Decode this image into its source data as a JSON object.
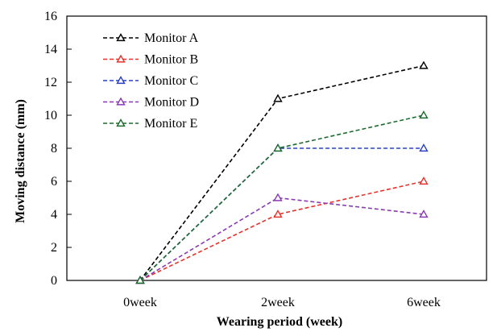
{
  "chart_data": {
    "type": "line",
    "title": "",
    "xlabel": "Wearing period (week)",
    "ylabel": "Moving distance (mm)",
    "categories": [
      "0week",
      "2week",
      "6week"
    ],
    "ylim": [
      0,
      16
    ],
    "yticks": [
      0,
      2,
      4,
      6,
      8,
      10,
      12,
      14,
      16
    ],
    "grid": false,
    "legend_position": "top-left",
    "marker": "open-triangle",
    "line_style": "dashed",
    "series": [
      {
        "name": "Monitor A",
        "values": [
          0,
          11,
          13
        ],
        "color": "#000000"
      },
      {
        "name": "Monitor B",
        "values": [
          0,
          4,
          6
        ],
        "color": "#e8322b"
      },
      {
        "name": "Monitor C",
        "values": [
          0,
          8,
          8
        ],
        "color": "#2b3fc4"
      },
      {
        "name": "Monitor D",
        "values": [
          0,
          5,
          4
        ],
        "color": "#8a3ab5"
      },
      {
        "name": "Monitor E",
        "values": [
          0,
          8,
          10
        ],
        "color": "#1e6b2f"
      }
    ]
  }
}
